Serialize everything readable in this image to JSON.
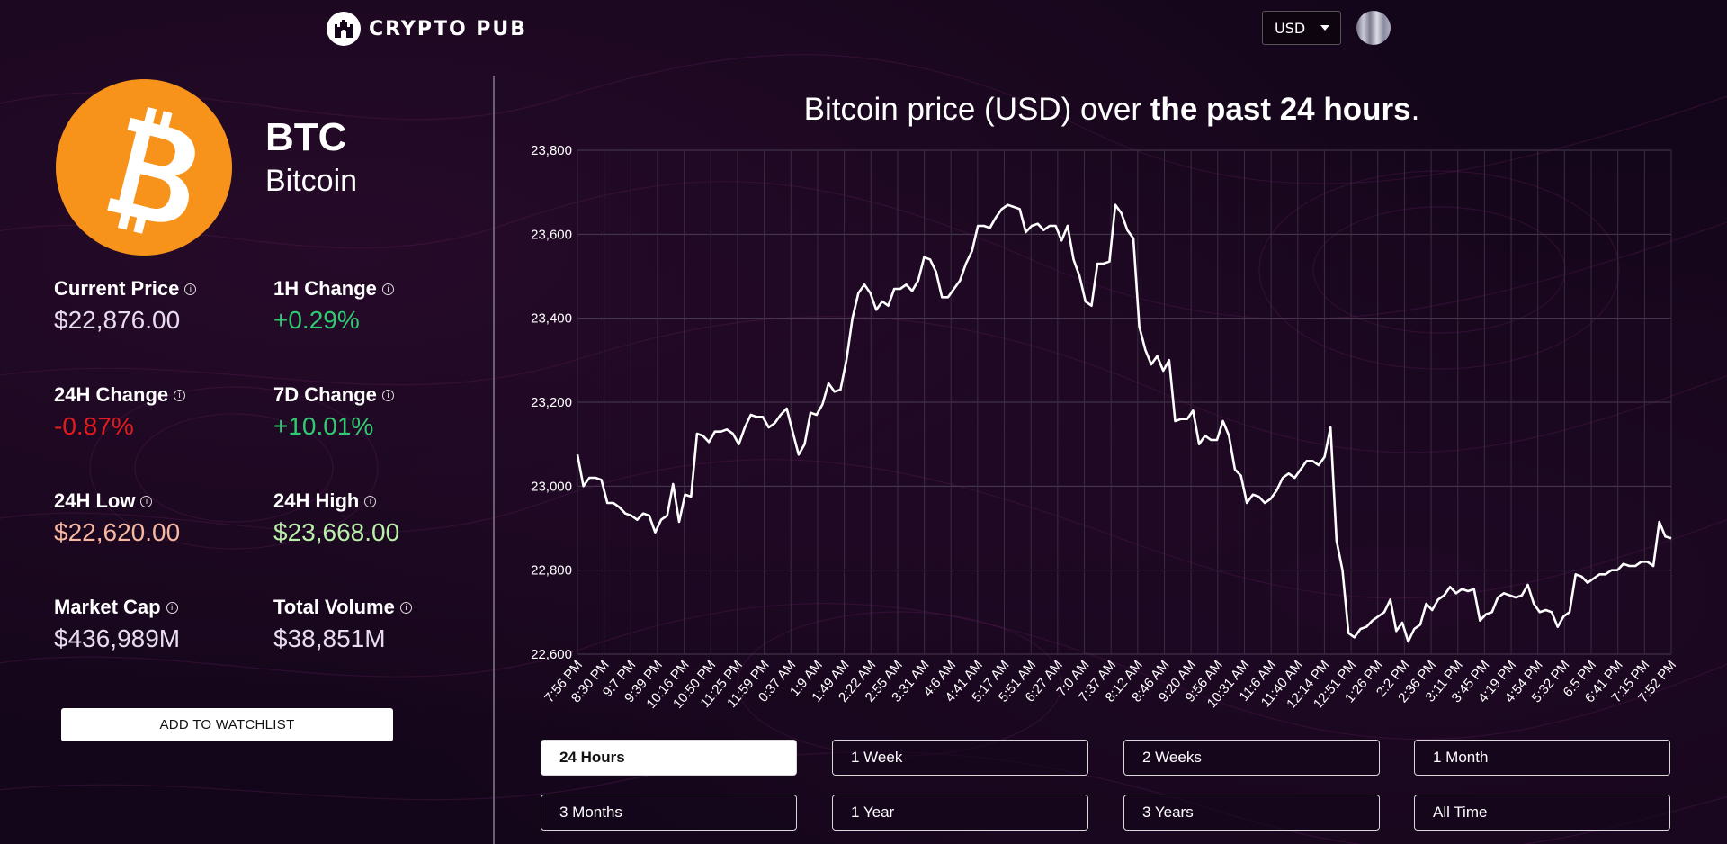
{
  "header": {
    "logo_text": "CRYPTO PUB",
    "currency": "USD"
  },
  "coin": {
    "symbol": "BTC",
    "name": "Bitcoin",
    "brand_color": "#F7931A"
  },
  "stats": [
    {
      "label": "Current Price",
      "value": "$22,876.00",
      "color": "#e8dcef"
    },
    {
      "label": "1H Change",
      "value": "+0.29%",
      "color": "#2ecc71"
    },
    {
      "label": "24H Change",
      "value": "-0.87%",
      "color": "#e31b1b"
    },
    {
      "label": "7D Change",
      "value": "+10.01%",
      "color": "#2ecc71"
    },
    {
      "label": "24H Low",
      "value": "$22,620.00",
      "color": "#f7b7a0"
    },
    {
      "label": "24H High",
      "value": "$23,668.00",
      "color": "#b8f0a8"
    },
    {
      "label": "Market Cap",
      "value": "$436,989M",
      "color": "#e8dcef"
    },
    {
      "label": "Total Volume",
      "value": "$38,851M",
      "color": "#e8dcef"
    }
  ],
  "watchlist_label": "ADD TO WATCHLIST",
  "chart_title": {
    "prefix": "Bitcoin price (USD) over ",
    "bold": "the past 24 hours",
    "suffix": "."
  },
  "timeframes": [
    "24 Hours",
    "1 Week",
    "2 Weeks",
    "1 Month",
    "3 Months",
    "1 Year",
    "3 Years",
    "All Time"
  ],
  "active_timeframe": "24 Hours",
  "chart_data": {
    "type": "line",
    "title": "Bitcoin price (USD) over the past 24 hours.",
    "xlabel": "",
    "ylabel": "",
    "ylim": [
      22600,
      23800
    ],
    "yticks": [
      "22,600",
      "22,800",
      "23,000",
      "23,200",
      "23,400",
      "23,600",
      "23,800"
    ],
    "ytick_values": [
      22600,
      22800,
      23000,
      23200,
      23400,
      23600,
      23800
    ],
    "x_tick_labels": [
      "7:56 PM",
      "8:30 PM",
      "9:7 PM",
      "9:39 PM",
      "10:16 PM",
      "10:50 PM",
      "11:25 PM",
      "11:59 PM",
      "0:37 AM",
      "1:9 AM",
      "1:49 AM",
      "2:22 AM",
      "2:55 AM",
      "3:31 AM",
      "4:6 AM",
      "4:41 AM",
      "5:17 AM",
      "5:51 AM",
      "6:27 AM",
      "7:0 AM",
      "7:37 AM",
      "8:12 AM",
      "8:46 AM",
      "9:20 AM",
      "9:56 AM",
      "10:31 AM",
      "11:6 AM",
      "11:40 AM",
      "12:14 PM",
      "12:51 PM",
      "1:26 PM",
      "2:2 PM",
      "2:36 PM",
      "3:11 PM",
      "3:45 PM",
      "4:19 PM",
      "4:54 PM",
      "5:32 PM",
      "6:5 PM",
      "6:41 PM",
      "7:15 PM",
      "7:52 PM"
    ],
    "series": [
      {
        "name": "Bitcoin",
        "color": "#ffffff",
        "values": [
          23075,
          23000,
          23020,
          23020,
          23015,
          22960,
          22960,
          22950,
          22935,
          22930,
          22920,
          22935,
          22930,
          22890,
          22920,
          22930,
          23005,
          22915,
          22980,
          22975,
          23125,
          23120,
          23105,
          23130,
          23130,
          23135,
          23125,
          23100,
          23140,
          23170,
          23165,
          23165,
          23140,
          23150,
          23170,
          23185,
          23130,
          23075,
          23100,
          23175,
          23170,
          23195,
          23245,
          23225,
          23230,
          23300,
          23400,
          23460,
          23480,
          23460,
          23420,
          23440,
          23430,
          23470,
          23470,
          23480,
          23465,
          23490,
          23545,
          23540,
          23510,
          23450,
          23450,
          23470,
          23490,
          23530,
          23560,
          23620,
          23620,
          23615,
          23640,
          23660,
          23670,
          23665,
          23660,
          23605,
          23620,
          23625,
          23610,
          23620,
          23620,
          23585,
          23620,
          23540,
          23500,
          23440,
          23430,
          23530,
          23530,
          23535,
          23670,
          23650,
          23610,
          23590,
          23380,
          23325,
          23290,
          23310,
          23275,
          23300,
          23155,
          23160,
          23160,
          23180,
          23100,
          23120,
          23110,
          23110,
          23155,
          23120,
          23040,
          23025,
          22960,
          22980,
          22975,
          22960,
          22970,
          22990,
          23020,
          23030,
          23020,
          23040,
          23060,
          23060,
          23050,
          23070,
          23140,
          22870,
          22800,
          22650,
          22640,
          22660,
          22665,
          22680,
          22690,
          22700,
          22730,
          22655,
          22675,
          22630,
          22660,
          22670,
          22720,
          22705,
          22730,
          22740,
          22760,
          22745,
          22755,
          22750,
          22755,
          22680,
          22695,
          22700,
          22735,
          22745,
          22740,
          22735,
          22740,
          22765,
          22720,
          22700,
          22705,
          22700,
          22665,
          22690,
          22700,
          22790,
          22785,
          22770,
          22780,
          22790,
          22790,
          22800,
          22800,
          22815,
          22810,
          22810,
          22820,
          22820,
          22810,
          22915,
          22880,
          22876
        ]
      }
    ]
  }
}
